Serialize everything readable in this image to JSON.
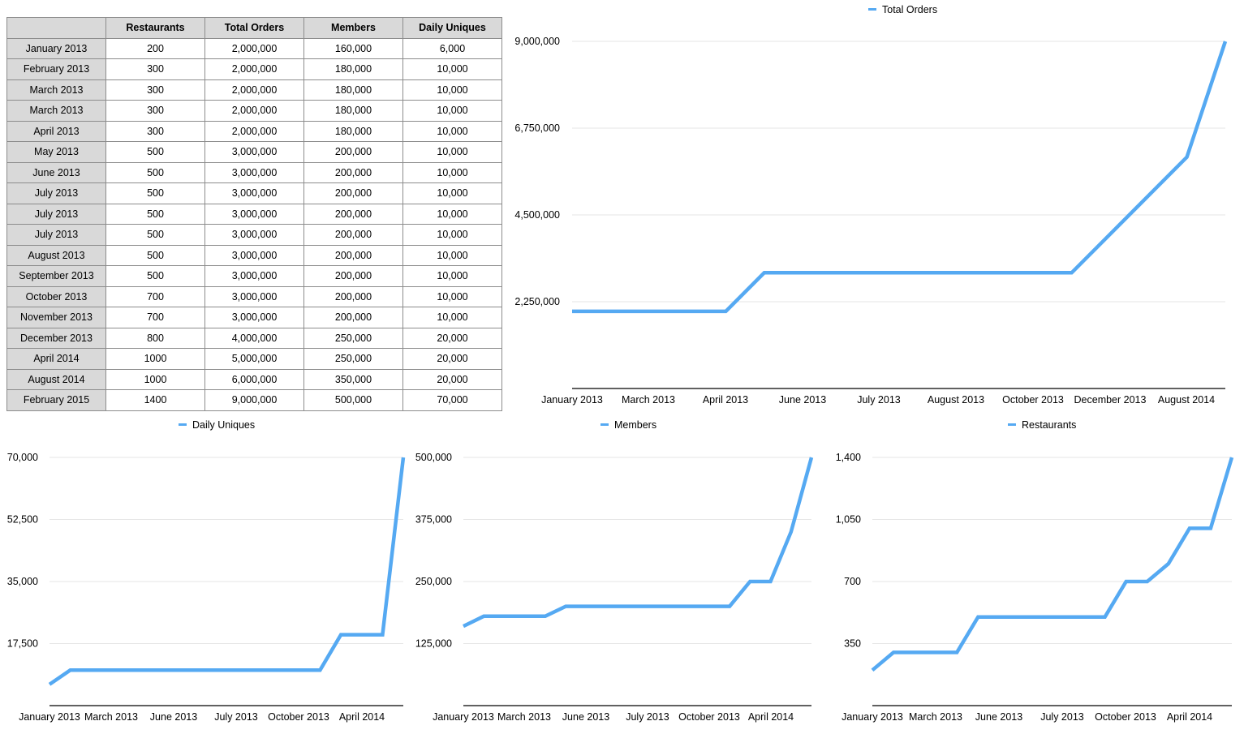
{
  "table": {
    "headers": [
      "",
      "Restaurants",
      "Total Orders",
      "Members",
      "Daily Uniques"
    ],
    "rows": [
      [
        "January 2013",
        "200",
        "2,000,000",
        "160,000",
        "6,000"
      ],
      [
        "February 2013",
        "300",
        "2,000,000",
        "180,000",
        "10,000"
      ],
      [
        "March 2013",
        "300",
        "2,000,000",
        "180,000",
        "10,000"
      ],
      [
        "March 2013",
        "300",
        "2,000,000",
        "180,000",
        "10,000"
      ],
      [
        "April 2013",
        "300",
        "2,000,000",
        "180,000",
        "10,000"
      ],
      [
        "May 2013",
        "500",
        "3,000,000",
        "200,000",
        "10,000"
      ],
      [
        "June 2013",
        "500",
        "3,000,000",
        "200,000",
        "10,000"
      ],
      [
        "July 2013",
        "500",
        "3,000,000",
        "200,000",
        "10,000"
      ],
      [
        "July 2013",
        "500",
        "3,000,000",
        "200,000",
        "10,000"
      ],
      [
        "July 2013",
        "500",
        "3,000,000",
        "200,000",
        "10,000"
      ],
      [
        "August 2013",
        "500",
        "3,000,000",
        "200,000",
        "10,000"
      ],
      [
        "September 2013",
        "500",
        "3,000,000",
        "200,000",
        "10,000"
      ],
      [
        "October 2013",
        "700",
        "3,000,000",
        "200,000",
        "10,000"
      ],
      [
        "November 2013",
        "700",
        "3,000,000",
        "200,000",
        "10,000"
      ],
      [
        "December 2013",
        "800",
        "4,000,000",
        "250,000",
        "20,000"
      ],
      [
        "April 2014",
        "1000",
        "5,000,000",
        "250,000",
        "20,000"
      ],
      [
        "August 2014",
        "1000",
        "6,000,000",
        "350,000",
        "20,000"
      ],
      [
        "February 2015",
        "1400",
        "9,000,000",
        "500,000",
        "70,000"
      ]
    ]
  },
  "colors": {
    "line": "#55a9f2",
    "grid": "#e6e6e6",
    "axis": "#000000"
  },
  "chart_data": [
    {
      "id": "total-orders",
      "type": "line",
      "categories": [
        "January 2013",
        "February 2013",
        "March 2013",
        "March 2013",
        "April 2013",
        "May 2013",
        "June 2013",
        "July 2013",
        "July 2013",
        "July 2013",
        "August 2013",
        "September 2013",
        "October 2013",
        "November 2013",
        "December 2013",
        "April 2014",
        "August 2014",
        "February 2015"
      ],
      "series": [
        {
          "name": "Total Orders",
          "values": [
            2000000,
            2000000,
            2000000,
            2000000,
            2000000,
            3000000,
            3000000,
            3000000,
            3000000,
            3000000,
            3000000,
            3000000,
            3000000,
            3000000,
            4000000,
            5000000,
            6000000,
            9000000
          ]
        }
      ],
      "ylim": [
        0,
        9000000
      ],
      "yticks": [
        2250000,
        4500000,
        6750000,
        9000000
      ],
      "ytick_labels": [
        "2,250,000",
        "4,500,000",
        "6,750,000",
        "9,000,000"
      ],
      "xtick_labels": [
        "January 2013",
        "March 2013",
        "April 2013",
        "June 2013",
        "July 2013",
        "August 2013",
        "October 2013",
        "December 2013",
        "August 2014"
      ],
      "legend": "top-center"
    },
    {
      "id": "daily-uniques",
      "type": "line",
      "categories": [
        "January 2013",
        "February 2013",
        "March 2013",
        "March 2013",
        "April 2013",
        "May 2013",
        "June 2013",
        "July 2013",
        "July 2013",
        "July 2013",
        "August 2013",
        "September 2013",
        "October 2013",
        "November 2013",
        "December 2013",
        "April 2014",
        "August 2014",
        "February 2015"
      ],
      "series": [
        {
          "name": "Daily Uniques",
          "values": [
            6000,
            10000,
            10000,
            10000,
            10000,
            10000,
            10000,
            10000,
            10000,
            10000,
            10000,
            10000,
            10000,
            10000,
            20000,
            20000,
            20000,
            70000
          ]
        }
      ],
      "ylim": [
        0,
        70000
      ],
      "yticks": [
        17500,
        35000,
        52500,
        70000
      ],
      "ytick_labels": [
        "17,500",
        "35,000",
        "52,500",
        "70,000"
      ],
      "xtick_labels": [
        "January 2013",
        "March 2013",
        "June 2013",
        "July 2013",
        "October 2013",
        "April 2014"
      ],
      "legend": "top-center"
    },
    {
      "id": "members",
      "type": "line",
      "categories": [
        "January 2013",
        "February 2013",
        "March 2013",
        "March 2013",
        "April 2013",
        "May 2013",
        "June 2013",
        "July 2013",
        "July 2013",
        "July 2013",
        "August 2013",
        "September 2013",
        "October 2013",
        "November 2013",
        "December 2013",
        "April 2014",
        "August 2014",
        "February 2015"
      ],
      "series": [
        {
          "name": "Members",
          "values": [
            160000,
            180000,
            180000,
            180000,
            180000,
            200000,
            200000,
            200000,
            200000,
            200000,
            200000,
            200000,
            200000,
            200000,
            250000,
            250000,
            350000,
            500000
          ]
        }
      ],
      "ylim": [
        0,
        500000
      ],
      "yticks": [
        125000,
        250000,
        375000,
        500000
      ],
      "ytick_labels": [
        "125,000",
        "250,000",
        "375,000",
        "500,000"
      ],
      "xtick_labels": [
        "January 2013",
        "March 2013",
        "June 2013",
        "July 2013",
        "October 2013",
        "April 2014"
      ],
      "legend": "top-center"
    },
    {
      "id": "restaurants",
      "type": "line",
      "categories": [
        "January 2013",
        "February 2013",
        "March 2013",
        "March 2013",
        "April 2013",
        "May 2013",
        "June 2013",
        "July 2013",
        "July 2013",
        "July 2013",
        "August 2013",
        "September 2013",
        "October 2013",
        "November 2013",
        "December 2013",
        "April 2014",
        "August 2014",
        "February 2015"
      ],
      "series": [
        {
          "name": "Restaurants",
          "values": [
            200,
            300,
            300,
            300,
            300,
            500,
            500,
            500,
            500,
            500,
            500,
            500,
            700,
            700,
            800,
            1000,
            1000,
            1400
          ]
        }
      ],
      "ylim": [
        0,
        1400
      ],
      "yticks": [
        350,
        700,
        1050,
        1400
      ],
      "ytick_labels": [
        "350",
        "700",
        "1,050",
        "1,400"
      ],
      "xtick_labels": [
        "January 2013",
        "March 2013",
        "June 2013",
        "July 2013",
        "October 2013",
        "April 2014"
      ],
      "legend": "top-center"
    }
  ]
}
